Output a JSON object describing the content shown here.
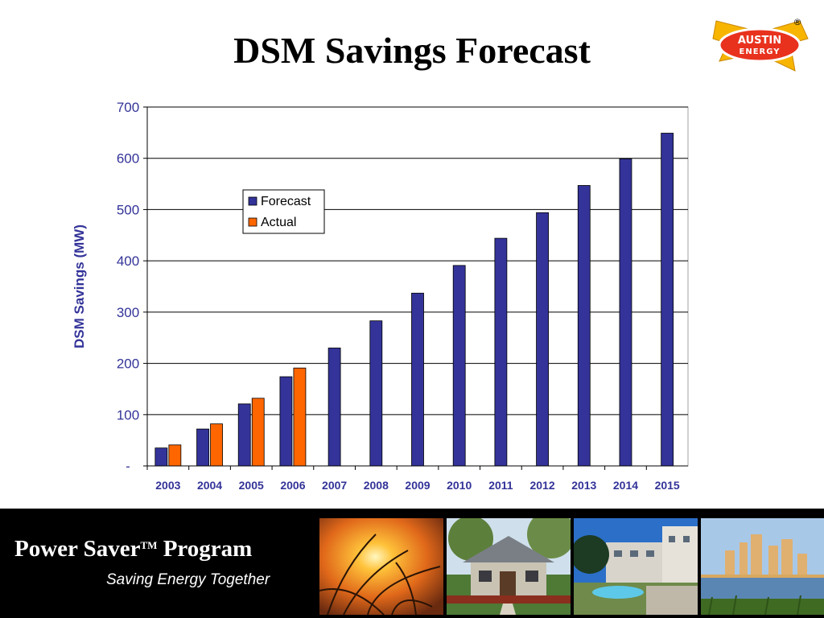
{
  "slide": {
    "title": "DSM Savings Forecast",
    "logo": {
      "line1": "AUSTIN",
      "line2": "ENERGY",
      "registered": "®",
      "colors": {
        "bolt": "#f7b500",
        "badge": "#e8321e"
      }
    }
  },
  "footer": {
    "program_name": "Power Saver",
    "trademark": "TM",
    "program_word": "Program",
    "tagline": "Saving Energy Together"
  },
  "colors": {
    "forecast": "#333399",
    "actual": "#ff6600",
    "axis_text": "#333399",
    "grid": "#000000"
  },
  "chart_data": {
    "type": "bar",
    "title": "",
    "xlabel": "",
    "ylabel": "DSM Savings (MW)",
    "ylim": [
      0,
      700
    ],
    "y_ticks": [
      0,
      100,
      200,
      300,
      400,
      500,
      600,
      700
    ],
    "y_tick_labels": [
      "-",
      "100",
      "200",
      "300",
      "400",
      "500",
      "600",
      "700"
    ],
    "grid": true,
    "legend": "upper-left",
    "categories": [
      "2003",
      "2004",
      "2005",
      "2006",
      "2007",
      "2008",
      "2009",
      "2010",
      "2011",
      "2012",
      "2013",
      "2014",
      "2015"
    ],
    "series": [
      {
        "name": "Forecast",
        "color": "#333399",
        "values": [
          35,
          72,
          121,
          174,
          230,
          283,
          337,
          391,
          444,
          494,
          547,
          599,
          649
        ]
      },
      {
        "name": "Actual",
        "color": "#ff6600",
        "values": [
          41,
          82,
          132,
          191,
          null,
          null,
          null,
          null,
          null,
          null,
          null,
          null,
          null
        ]
      }
    ]
  }
}
